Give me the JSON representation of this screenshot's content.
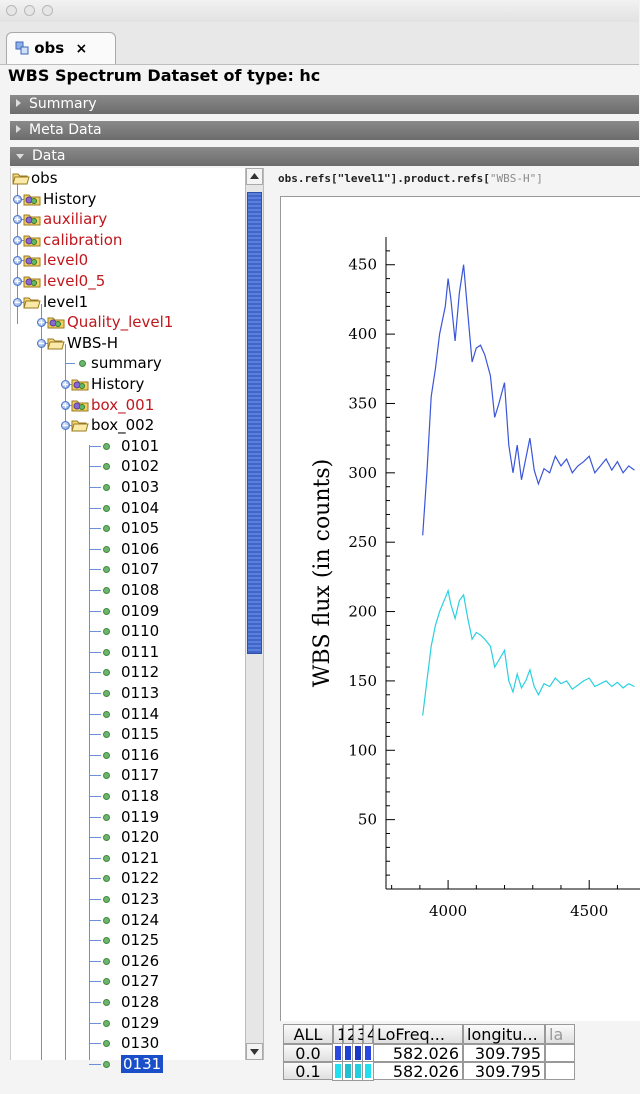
{
  "window": {
    "traffic_lights": [
      "close",
      "minimize",
      "zoom"
    ]
  },
  "tab": {
    "label": "obs",
    "close": "×",
    "icon": "dataset-icon"
  },
  "heading": "WBS Spectrum Dataset of type: hc",
  "sections": [
    {
      "label": "Summary",
      "state": "collapsed"
    },
    {
      "label": "Meta Data",
      "state": "collapsed"
    },
    {
      "label": "Data",
      "state": "expanded"
    }
  ],
  "tree": {
    "root": "obs",
    "items": [
      {
        "label": "History",
        "color": "#000000"
      },
      {
        "label": "auxiliary",
        "color": "#c0171c"
      },
      {
        "label": "calibration",
        "color": "#c0171c"
      },
      {
        "label": "level0",
        "color": "#c0171c"
      },
      {
        "label": "level0_5",
        "color": "#c0171c"
      },
      {
        "label": "level1",
        "color": "#000000"
      },
      {
        "label": "Quality_level1",
        "color": "#c0171c"
      },
      {
        "label": "WBS-H",
        "color": "#000000"
      },
      {
        "label": "summary",
        "color": "#000000"
      },
      {
        "label": "History",
        "color": "#000000"
      },
      {
        "label": "box_001",
        "color": "#c0171c"
      },
      {
        "label": "box_002",
        "color": "#000000"
      }
    ],
    "leaves": [
      "0101",
      "0102",
      "0103",
      "0104",
      "0105",
      "0106",
      "0107",
      "0108",
      "0109",
      "0110",
      "0111",
      "0112",
      "0113",
      "0114",
      "0115",
      "0116",
      "0117",
      "0118",
      "0119",
      "0120",
      "0121",
      "0122",
      "0123",
      "0124",
      "0125",
      "0126",
      "0127",
      "0128",
      "0129",
      "0130",
      "0131"
    ],
    "selected": "0131"
  },
  "path": {
    "main": "obs.refs[\"level1\"].product.refs[",
    "dim": "\"WBS-H\"]"
  },
  "chart_data": {
    "type": "line",
    "ylabel": "WBS flux (in counts)",
    "xlabel": "",
    "x_ticks": [
      "4000",
      "4500"
    ],
    "y_ticks": [
      "50",
      "100",
      "150",
      "200",
      "250",
      "300",
      "350",
      "400",
      "450"
    ],
    "xlim": [
      3780,
      4680
    ],
    "ylim": [
      0,
      470
    ],
    "series": [
      {
        "color": "#3a55d8",
        "x": [
          3910,
          3925,
          3940,
          3955,
          3970,
          3990,
          4000,
          4010,
          4025,
          4040,
          4055,
          4070,
          4085,
          4100,
          4115,
          4130,
          4150,
          4165,
          4180,
          4200,
          4215,
          4230,
          4245,
          4260,
          4275,
          4290,
          4305,
          4320,
          4340,
          4360,
          4380,
          4400,
          4420,
          4440,
          4460,
          4480,
          4500,
          4520,
          4540,
          4560,
          4580,
          4600,
          4620,
          4640,
          4660
        ],
        "y": [
          255,
          300,
          355,
          375,
          400,
          420,
          440,
          425,
          395,
          430,
          450,
          415,
          380,
          390,
          392,
          385,
          370,
          340,
          350,
          365,
          320,
          300,
          320,
          295,
          310,
          325,
          302,
          292,
          303,
          300,
          312,
          305,
          310,
          300,
          305,
          308,
          312,
          300,
          305,
          310,
          302,
          308,
          300,
          305,
          302
        ]
      },
      {
        "color": "#2ad0e0",
        "x": [
          3910,
          3925,
          3940,
          3955,
          3970,
          3990,
          4000,
          4010,
          4025,
          4040,
          4055,
          4070,
          4085,
          4100,
          4115,
          4130,
          4150,
          4165,
          4180,
          4200,
          4215,
          4230,
          4245,
          4260,
          4275,
          4290,
          4305,
          4320,
          4340,
          4360,
          4380,
          4400,
          4420,
          4440,
          4460,
          4480,
          4500,
          4520,
          4540,
          4560,
          4580,
          4600,
          4620,
          4640,
          4660
        ],
        "y": [
          125,
          150,
          175,
          190,
          200,
          210,
          215,
          205,
          195,
          208,
          212,
          195,
          180,
          185,
          183,
          180,
          175,
          160,
          165,
          172,
          150,
          142,
          155,
          145,
          150,
          158,
          146,
          140,
          148,
          146,
          152,
          148,
          150,
          144,
          147,
          150,
          152,
          146,
          148,
          150,
          146,
          149,
          145,
          148,
          146
        ]
      }
    ]
  },
  "table": {
    "headers": [
      "ALL",
      "1",
      "2",
      "3",
      "4",
      "LoFreq...",
      "longitu...",
      "la"
    ],
    "rows": [
      {
        "label": "0.0",
        "swatches": [
          "#2a48e0",
          "#2040d4",
          "#1a36c4",
          "#2a48e0"
        ],
        "lofreq": "582.026",
        "longitude": "309.795"
      },
      {
        "label": "0.1",
        "swatches": [
          "#20e0f0",
          "#20c0d0",
          "#20d0e0",
          "#20e0f0"
        ],
        "lofreq": "582.026",
        "longitude": "309.795"
      }
    ]
  }
}
